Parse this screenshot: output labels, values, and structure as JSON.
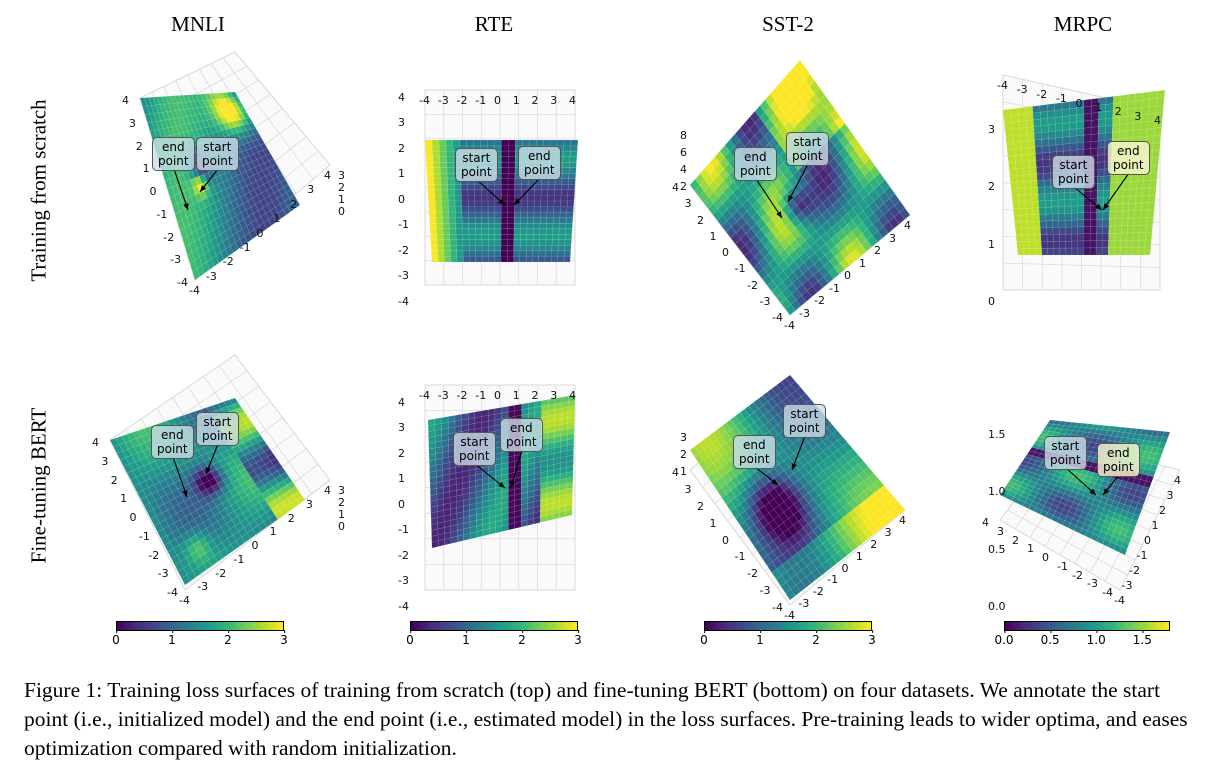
{
  "columns": [
    "MNLI",
    "RTE",
    "SST-2",
    "MRPC"
  ],
  "rows": [
    "Training from scratch",
    "Fine-tuning BERT"
  ],
  "annotations": {
    "start": "start\npoint",
    "end": "end\npoint"
  },
  "axis_ticks": {
    "xy": [
      "-4",
      "-3",
      "-2",
      "-1",
      "0",
      "1",
      "2",
      "3",
      "4"
    ],
    "mnli_scratch_z": [
      "0",
      "1",
      "2",
      "3"
    ],
    "rte_scratch_z": [
      "-4",
      "-3",
      "-2",
      "-1",
      "0",
      "1",
      "2",
      "3",
      "4"
    ],
    "rte_scratch_zback": [
      "0",
      "1",
      "2",
      "3",
      "4"
    ],
    "sst_scratch_z": [
      "2",
      "4",
      "6",
      "8"
    ],
    "mrpc_scratch_z": [
      "0",
      "1",
      "2",
      "3"
    ],
    "mnli_ft_z": [
      "0",
      "1",
      "2",
      "3"
    ],
    "rte_ft_z": [
      "-4",
      "-3",
      "-2",
      "-1",
      "0",
      "1",
      "2",
      "3",
      "4"
    ],
    "rte_ft_zback": [
      "0",
      "1",
      "2"
    ],
    "sst_ft_z": [
      "1",
      "2",
      "3"
    ],
    "mrpc_ft_z": [
      "0.0",
      "0.5",
      "1.0",
      "1.5"
    ]
  },
  "colorbars": [
    {
      "ticks": [
        "0",
        "1",
        "2",
        "3"
      ],
      "min": 0,
      "max": 3
    },
    {
      "ticks": [
        "0",
        "1",
        "2",
        "3"
      ],
      "min": 0,
      "max": 3
    },
    {
      "ticks": [
        "0",
        "1",
        "2",
        "3"
      ],
      "min": 0,
      "max": 3
    },
    {
      "ticks": [
        "0.0",
        "0.5",
        "1.0",
        "1.5"
      ],
      "min": 0,
      "max": 1.8
    }
  ],
  "caption": "Figure 1: Training loss surfaces of training from scratch (top) and fine-tuning BERT (bottom) on four datasets. We annotate the start point (i.e., initialized model) and the end point (i.e., estimated model) in the loss surfaces. Pre-training leads to wider optima, and eases optimization compared with random initialization.",
  "colors": {
    "viridis_low": "#440154",
    "viridis_mid": "#21918c",
    "viridis_high": "#fde725"
  }
}
